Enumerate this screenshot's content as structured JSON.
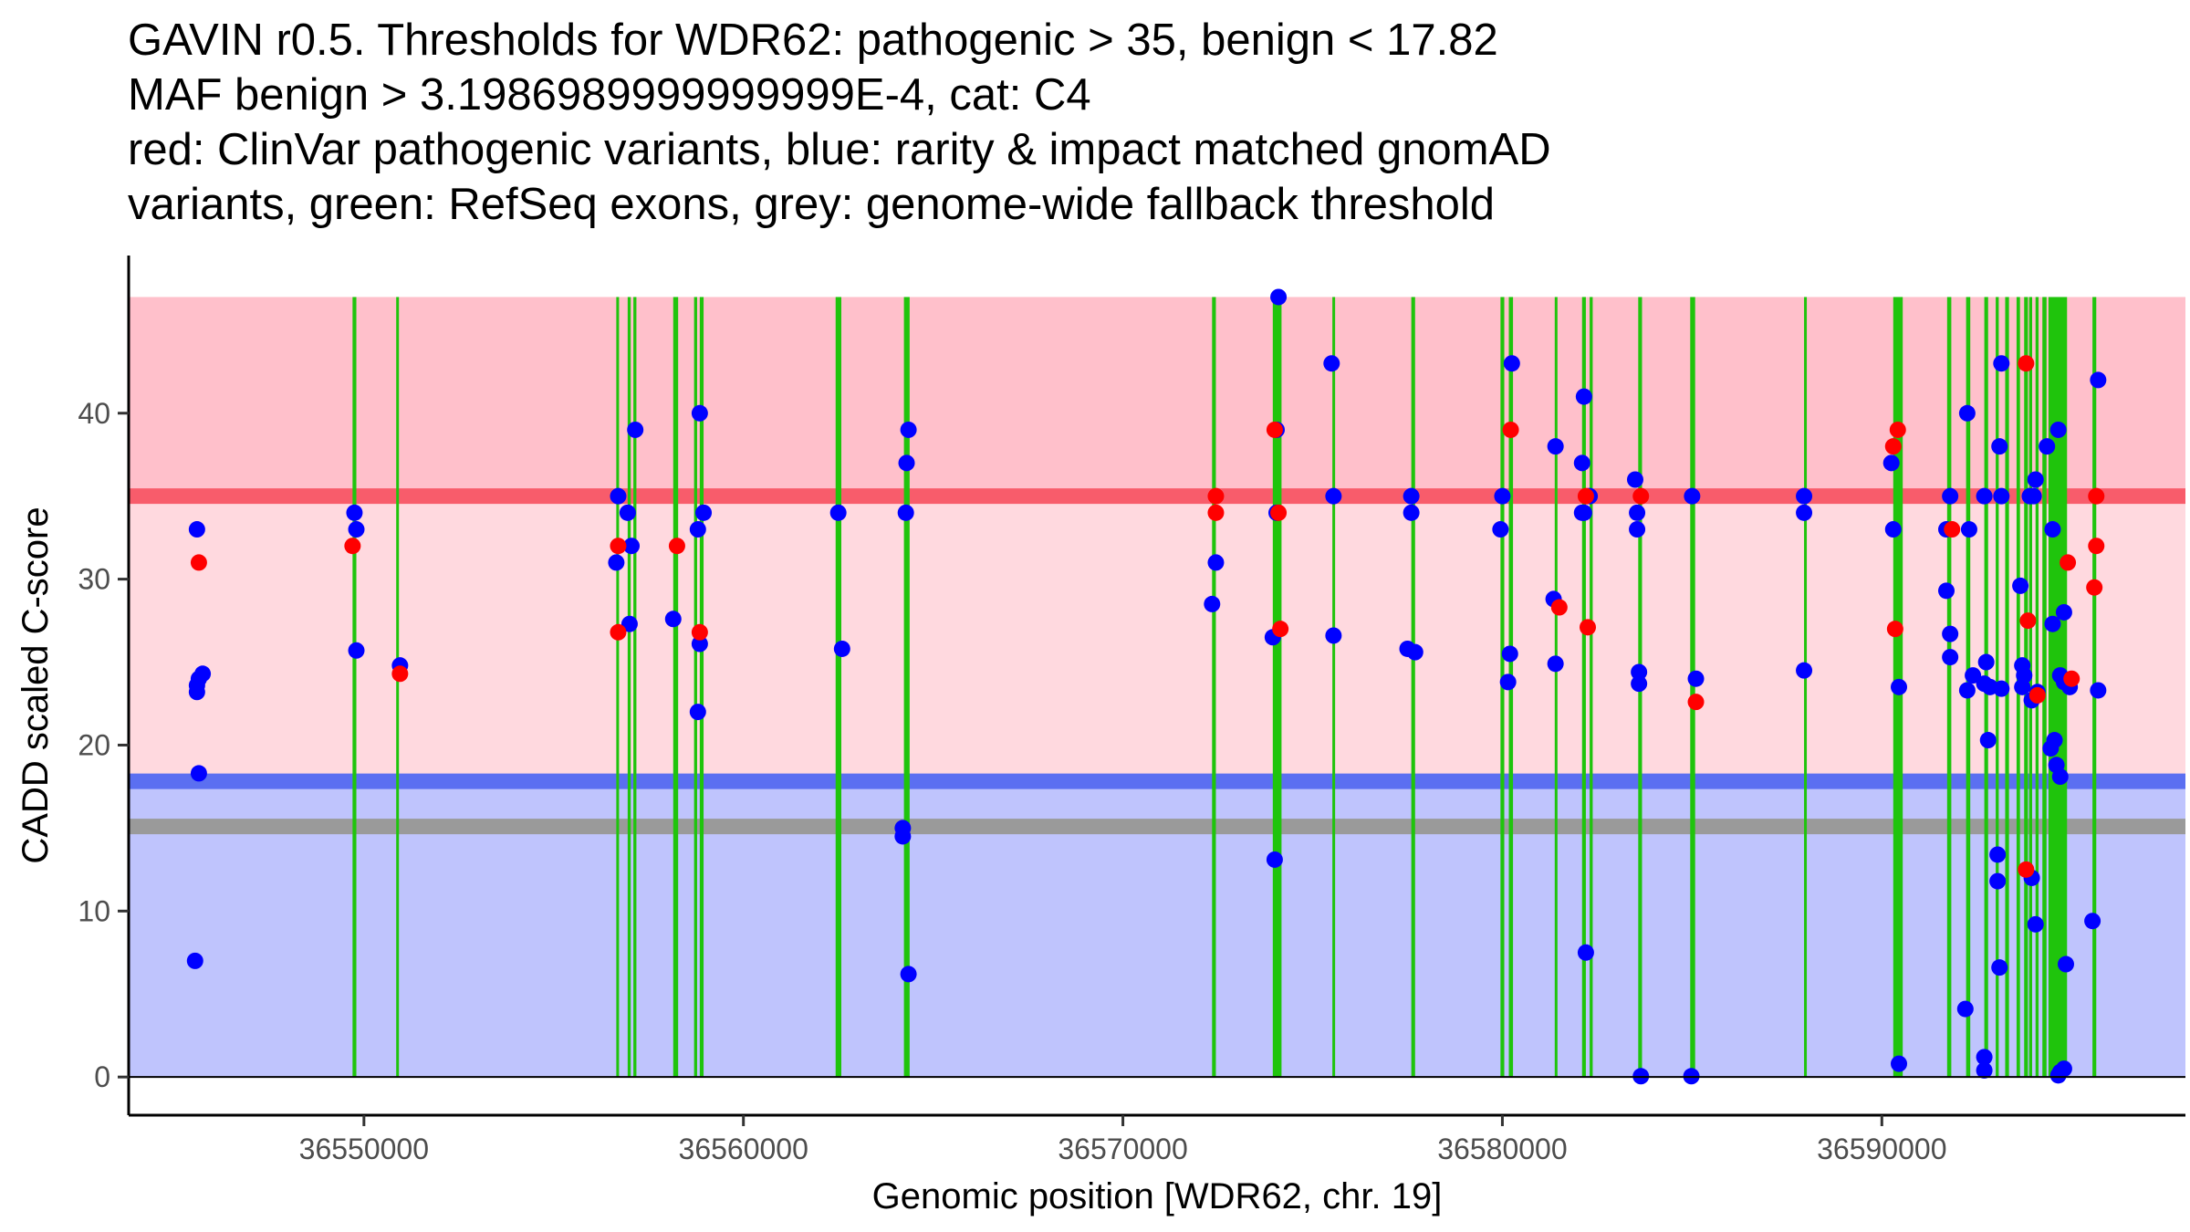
{
  "chart_data": {
    "type": "scatter",
    "title_lines": [
      "GAVIN r0.5. Thresholds for WDR62: pathogenic > 35, benign < 17.82",
      "MAF benign > 3.1986989999999999E-4, cat: C4",
      "red: ClinVar pathogenic variants, blue: rarity & impact matched gnomAD",
      "variants, green: RefSeq exons, grey: genome-wide fallback threshold"
    ],
    "xlabel": "Genomic position [WDR62, chr. 19]",
    "ylabel": "CADD scaled C-score",
    "xlim": [
      36543800,
      36598000
    ],
    "ylim": [
      -2.3,
      49.5
    ],
    "x_ticks": [
      36550000,
      36560000,
      36570000,
      36580000,
      36590000
    ],
    "y_ticks": [
      0,
      10,
      20,
      30,
      40
    ],
    "regions": [
      {
        "name": "pathogenic-region",
        "y0": 35,
        "y1": 47,
        "color": "#ffc0cb"
      },
      {
        "name": "uncertain-region",
        "y0": 17.82,
        "y1": 35,
        "color": "#ffd9df"
      },
      {
        "name": "benign-region",
        "y0": 0,
        "y1": 17.82,
        "color": "#bfc4fd"
      }
    ],
    "thresholds": [
      {
        "name": "pathogenic-threshold-line",
        "y": 35,
        "color": "#f85c6b"
      },
      {
        "name": "benign-threshold-line",
        "y": 17.82,
        "color": "#5b6ff1"
      },
      {
        "name": "fallback-threshold-line",
        "y": 15.1,
        "color": "#9a9a9a"
      }
    ],
    "exon_color": "#1fc40c",
    "exons": [
      [
        36549700,
        36549800
      ],
      [
        36550850,
        36550920
      ],
      [
        36556650,
        36556720
      ],
      [
        36556950,
        36557030
      ],
      [
        36557100,
        36557180
      ],
      [
        36558150,
        36558280
      ],
      [
        36558700,
        36558780
      ],
      [
        36558850,
        36558950
      ],
      [
        36562430,
        36562580
      ],
      [
        36564230,
        36564380
      ],
      [
        36572350,
        36572450
      ],
      [
        36573950,
        36574180
      ],
      [
        36575520,
        36575580
      ],
      [
        36577600,
        36577700
      ],
      [
        36579950,
        36580050
      ],
      [
        36580170,
        36580280
      ],
      [
        36581380,
        36581440
      ],
      [
        36582100,
        36582200
      ],
      [
        36582300,
        36582380
      ],
      [
        36583580,
        36583680
      ],
      [
        36584950,
        36585080
      ],
      [
        36587950,
        36588000
      ],
      [
        36590300,
        36590550
      ],
      [
        36591720,
        36591830
      ],
      [
        36592220,
        36592330
      ],
      [
        36592700,
        36592800
      ],
      [
        36593000,
        36593080
      ],
      [
        36593250,
        36593350
      ],
      [
        36593550,
        36593640
      ],
      [
        36593750,
        36593850
      ],
      [
        36593880,
        36593960
      ],
      [
        36594050,
        36594130
      ],
      [
        36594230,
        36594340
      ],
      [
        36594390,
        36594880
      ],
      [
        36595550,
        36595650
      ]
    ],
    "series": [
      {
        "name": "ClinVar pathogenic",
        "color": "#ff0000",
        "points": [
          [
            36545650,
            31.0
          ],
          [
            36549700,
            32.0
          ],
          [
            36550950,
            24.3
          ],
          [
            36556700,
            32.0
          ],
          [
            36556700,
            26.8
          ],
          [
            36558250,
            32.0
          ],
          [
            36558850,
            26.8
          ],
          [
            36572450,
            35.0
          ],
          [
            36572450,
            34.0
          ],
          [
            36574000,
            39.0
          ],
          [
            36574100,
            34.0
          ],
          [
            36574150,
            27.0
          ],
          [
            36580220,
            39.0
          ],
          [
            36581500,
            28.3
          ],
          [
            36582200,
            35.0
          ],
          [
            36582250,
            27.1
          ],
          [
            36583650,
            35.0
          ],
          [
            36585100,
            22.6
          ],
          [
            36590300,
            38.0
          ],
          [
            36590420,
            39.0
          ],
          [
            36590350,
            27.0
          ],
          [
            36591850,
            33.0
          ],
          [
            36593800,
            43.0
          ],
          [
            36593850,
            27.5
          ],
          [
            36593800,
            12.5
          ],
          [
            36594100,
            23.0
          ],
          [
            36594900,
            31.0
          ],
          [
            36595000,
            24.0
          ],
          [
            36595650,
            35.0
          ],
          [
            36595650,
            32.0
          ],
          [
            36595600,
            29.5
          ]
        ]
      },
      {
        "name": "gnomAD matched",
        "color": "#0000ff",
        "points": [
          [
            36545600,
            33.0
          ],
          [
            36545600,
            23.6
          ],
          [
            36545650,
            24.0
          ],
          [
            36545600,
            23.2
          ],
          [
            36545750,
            24.3
          ],
          [
            36545650,
            18.3
          ],
          [
            36545550,
            7.0
          ],
          [
            36549750,
            34.0
          ],
          [
            36549800,
            33.0
          ],
          [
            36549800,
            25.7
          ],
          [
            36550950,
            24.8
          ],
          [
            36556700,
            35.0
          ],
          [
            36556650,
            31.0
          ],
          [
            36556950,
            34.0
          ],
          [
            36557050,
            32.0
          ],
          [
            36557000,
            27.3
          ],
          [
            36557150,
            39.0
          ],
          [
            36558150,
            27.6
          ],
          [
            36558850,
            40.0
          ],
          [
            36558800,
            33.0
          ],
          [
            36558950,
            34.0
          ],
          [
            36558850,
            26.1
          ],
          [
            36558800,
            22.0
          ],
          [
            36562500,
            34.0
          ],
          [
            36562600,
            25.8
          ],
          [
            36564200,
            15.0
          ],
          [
            36564200,
            14.5
          ],
          [
            36564350,
            39.0
          ],
          [
            36564300,
            37.0
          ],
          [
            36564280,
            34.0
          ],
          [
            36564350,
            6.2
          ],
          [
            36572350,
            28.5
          ],
          [
            36572450,
            31.0
          ],
          [
            36573950,
            26.5
          ],
          [
            36574050,
            39.0
          ],
          [
            36574100,
            47.0
          ],
          [
            36574000,
            13.1
          ],
          [
            36574050,
            34.0
          ],
          [
            36575500,
            43.0
          ],
          [
            36575550,
            35.0
          ],
          [
            36575550,
            26.6
          ],
          [
            36577600,
            35.0
          ],
          [
            36577600,
            34.0
          ],
          [
            36577500,
            25.8
          ],
          [
            36577700,
            25.6
          ],
          [
            36580000,
            35.0
          ],
          [
            36579950,
            33.0
          ],
          [
            36580250,
            43.0
          ],
          [
            36580200,
            25.5
          ],
          [
            36580150,
            23.8
          ],
          [
            36581400,
            38.0
          ],
          [
            36581350,
            28.8
          ],
          [
            36581400,
            24.9
          ],
          [
            36582150,
            41.0
          ],
          [
            36582100,
            37.0
          ],
          [
            36582150,
            34.0
          ],
          [
            36582300,
            35.0
          ],
          [
            36582100,
            34.0
          ],
          [
            36582200,
            7.5
          ],
          [
            36583500,
            36.0
          ],
          [
            36583550,
            34.0
          ],
          [
            36583550,
            33.0
          ],
          [
            36583600,
            24.4
          ],
          [
            36583600,
            23.7
          ],
          [
            36583650,
            0.05
          ],
          [
            36585000,
            35.0
          ],
          [
            36585100,
            24.0
          ],
          [
            36584980,
            0.05
          ],
          [
            36587950,
            35.0
          ],
          [
            36587950,
            34.0
          ],
          [
            36587950,
            24.5
          ],
          [
            36590250,
            37.0
          ],
          [
            36590300,
            33.0
          ],
          [
            36590450,
            23.5
          ],
          [
            36590450,
            0.8
          ],
          [
            36591800,
            35.0
          ],
          [
            36591700,
            33.0
          ],
          [
            36591700,
            29.3
          ],
          [
            36591800,
            26.7
          ],
          [
            36591800,
            25.3
          ],
          [
            36592250,
            40.0
          ],
          [
            36592300,
            33.0
          ],
          [
            36592400,
            24.2
          ],
          [
            36592250,
            23.3
          ],
          [
            36592200,
            4.1
          ],
          [
            36592700,
            35.0
          ],
          [
            36592750,
            25.0
          ],
          [
            36592700,
            23.7
          ],
          [
            36592850,
            23.5
          ],
          [
            36592800,
            20.3
          ],
          [
            36592700,
            1.2
          ],
          [
            36592700,
            0.4
          ],
          [
            36593150,
            43.0
          ],
          [
            36593100,
            38.0
          ],
          [
            36593150,
            35.0
          ],
          [
            36593150,
            23.4
          ],
          [
            36593050,
            13.4
          ],
          [
            36593050,
            11.8
          ],
          [
            36593100,
            6.6
          ],
          [
            36593650,
            29.6
          ],
          [
            36593700,
            24.8
          ],
          [
            36593750,
            24.2
          ],
          [
            36593700,
            23.5
          ],
          [
            36593900,
            35.0
          ],
          [
            36594000,
            35.0
          ],
          [
            36593950,
            22.7
          ],
          [
            36593950,
            12.0
          ],
          [
            36594050,
            36.0
          ],
          [
            36594100,
            23.2
          ],
          [
            36594050,
            9.2
          ],
          [
            36594350,
            38.0
          ],
          [
            36594500,
            33.0
          ],
          [
            36594500,
            27.3
          ],
          [
            36594450,
            19.8
          ],
          [
            36594550,
            20.3
          ],
          [
            36594600,
            18.8
          ],
          [
            36594700,
            18.1
          ],
          [
            36594650,
            39.0
          ],
          [
            36594800,
            28.0
          ],
          [
            36594700,
            24.2
          ],
          [
            36594950,
            23.5
          ],
          [
            36594800,
            23.8
          ],
          [
            36594850,
            6.8
          ],
          [
            36594650,
            0.1
          ],
          [
            36594800,
            0.5
          ],
          [
            36594700,
            0.3
          ],
          [
            36595700,
            42.0
          ],
          [
            36595700,
            23.3
          ],
          [
            36595550,
            9.4
          ]
        ]
      }
    ]
  }
}
